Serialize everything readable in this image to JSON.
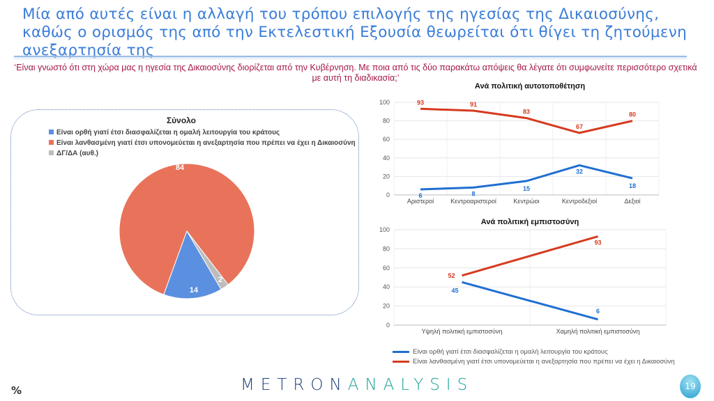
{
  "title": "Μία από αυτές είναι η αλλαγή του τρόπου επιλογής της ηγεσίας της Δικαιοσύνης, καθώς ο ορισμός της από την Εκτελεστική Εξουσία θεωρείται ότι θίγει τη ζητούμενη ανεξαρτησία της",
  "question": "‘Είναι γνωστό ότι στη χώρα μας η ηγεσία της Δικαιοσύνης διορίζεται από την Κυβέρνηση. Με ποια από τις δύο παρακάτω απόψεις θα λέγατε ότι συμφωνείτε περισσότερο σχετικά με αυτή τη διαδικασία;’",
  "colors": {
    "blue": "#1f6fd1",
    "red": "#d63a1f",
    "pie_blue": "#5b8fe0",
    "pie_red": "#e8735a",
    "pie_gray": "#bdbdbd"
  },
  "chart_data": [
    {
      "type": "pie",
      "title": "Σύνολο",
      "labels": [
        "Είναι ορθή γιατί έτσι διασφαλίζεται η ομαλή λειτουργία του κράτους",
        "Είναι λανθασμένη γιατί έτσι υπονομεύεται η ανεξαρτησία που πρέπει να έχει η Δικαιοσύνη",
        "ΔΓ/ΔΑ (αυθ.)"
      ],
      "values": [
        14,
        84,
        2
      ],
      "value_labels": [
        "14",
        "84",
        "2"
      ]
    },
    {
      "type": "line",
      "title": "Ανά πολιτική αυτοτοποθέτηση",
      "categories": [
        "Αριστεροί",
        "Κεντροαριστεροί",
        "Κεντρώοι",
        "Κεντροδεξιοί",
        "Δεξιοί"
      ],
      "ylim": [
        0,
        100
      ],
      "yticks": [
        "0",
        "20",
        "40",
        "60",
        "80",
        "100"
      ],
      "series": [
        {
          "name": "Είναι ορθή γιατί έτσι διασφαλίζεται η ομαλή λειτουργία του κράτους",
          "values": [
            6,
            8,
            15,
            32,
            18
          ]
        },
        {
          "name": "Είναι λανθασμένη γιατί έτσι υπονομεύεται η ανεξαρτησία που πρέπει να έχει η Δικαιοσύνη",
          "values": [
            93,
            91,
            83,
            67,
            80
          ]
        }
      ]
    },
    {
      "type": "line",
      "title": "Ανά πολιτική εμπιστοσύνη",
      "categories": [
        "Υψηλή πολιτική εμπιστοσύνη",
        "Χαμηλή πολιτική εμπιστοσύνη"
      ],
      "ylim": [
        0,
        100
      ],
      "yticks": [
        "0",
        "20",
        "40",
        "60",
        "80",
        "100"
      ],
      "series": [
        {
          "name": "Είναι ορθή γιατί έτσι διασφαλίζεται η ομαλή λειτουργία του κράτους",
          "values": [
            45,
            6
          ]
        },
        {
          "name": "Είναι λανθασμένη γιατί έτσι υπονομεύεται η ανεξαρτησία που πρέπει να έχει η Δικαιοσύνη",
          "values": [
            52,
            93
          ]
        }
      ]
    }
  ],
  "footer": {
    "percent": "%",
    "logo_a": "METRON",
    "logo_b": "ANALYSIS",
    "page": "19"
  }
}
